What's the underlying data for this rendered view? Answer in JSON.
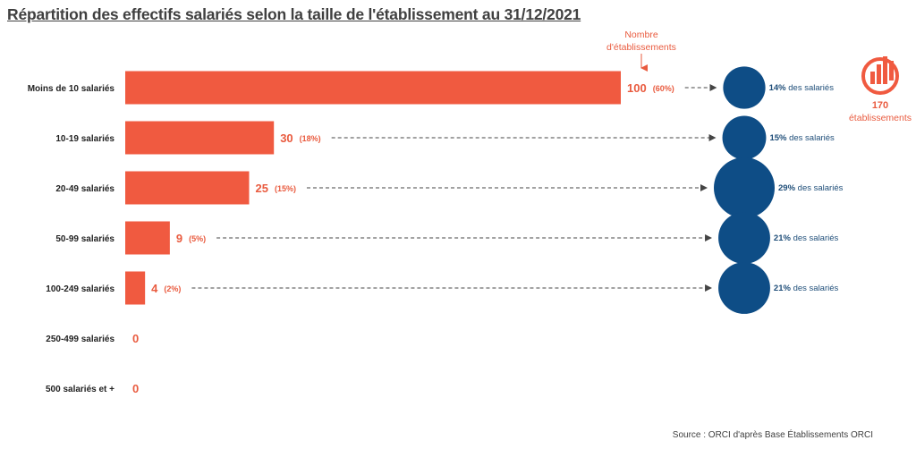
{
  "title": "Répartition des effectifs salariés selon la taille de l'établissement au 31/12/2021",
  "source": "Source : ORCI d'après Base Établissements ORCI",
  "colors": {
    "bar": "#f05a40",
    "bubble": "#0e4d86",
    "accent": "#e95b3f",
    "text": "#222222"
  },
  "header_label": [
    "Nombre",
    "d'établissements"
  ],
  "total": {
    "value": "170",
    "label": "établissements",
    "icon": "bar-chart-circle-icon"
  },
  "chart_data": {
    "type": "bar",
    "orientation": "horizontal",
    "title": "Répartition des effectifs salariés selon la taille de l'établissement au 31/12/2021",
    "xlim": [
      0,
      100
    ],
    "grid": false,
    "categories": [
      "Moins de 10 salariés",
      "10-19 salariés",
      "20-49 salariés",
      "50-99 salariés",
      "100-249 salariés",
      "250-499 salariés",
      "500 salariés et +"
    ],
    "values": [
      100,
      30,
      25,
      9,
      4,
      0,
      0
    ],
    "percent_labels": [
      "(60%)",
      "(18%)",
      "(15%)",
      "(5%)",
      "(2%)",
      "",
      ""
    ],
    "employee_share": [
      14,
      15,
      29,
      21,
      21,
      null,
      null
    ],
    "employee_share_labels": [
      "14%",
      "15%",
      "29%",
      "21%",
      "21%",
      "",
      ""
    ],
    "employee_share_suffix": " des salariés"
  }
}
